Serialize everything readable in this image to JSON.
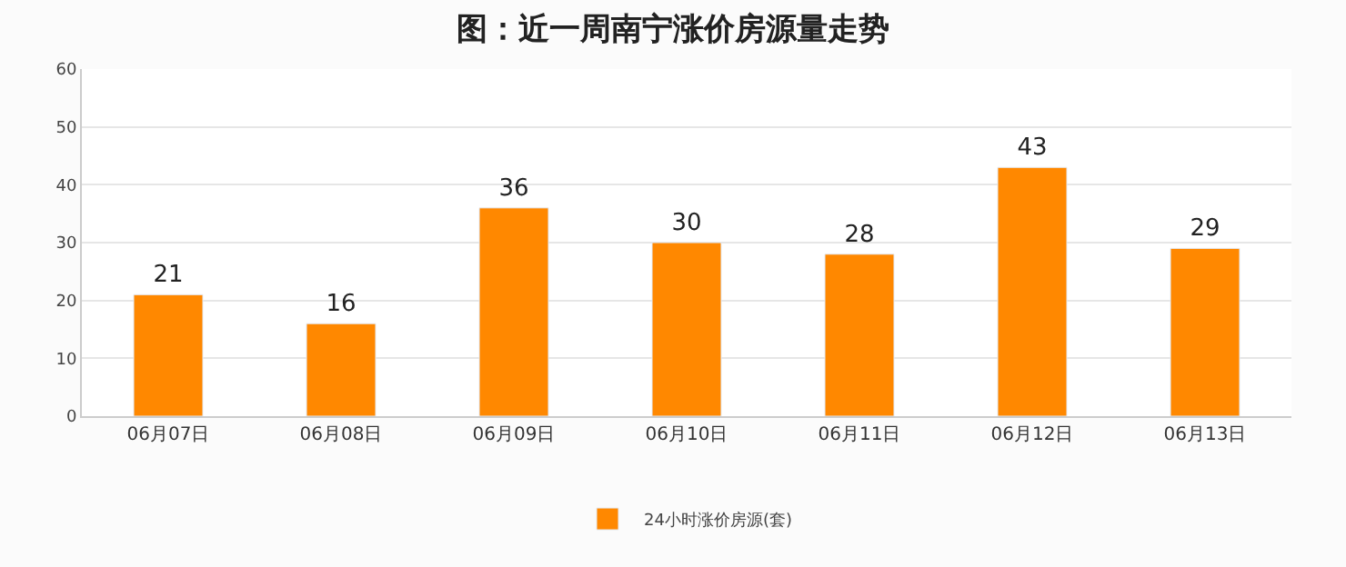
{
  "chart_data": {
    "type": "bar",
    "title": "图：近一周南宁涨价房源量走势",
    "categories": [
      "06月07日",
      "06月08日",
      "06月09日",
      "06月10日",
      "06月11日",
      "06月12日",
      "06月13日"
    ],
    "series": [
      {
        "name": "24小时涨价房源(套)",
        "color": "#ff8800",
        "values": [
          21,
          16,
          36,
          30,
          28,
          43,
          29
        ]
      }
    ],
    "ylim": [
      0,
      60
    ],
    "yticks": [
      0,
      10,
      20,
      30,
      40,
      50,
      60
    ],
    "grid": "y",
    "legend": "bottom",
    "data_labels": true
  }
}
